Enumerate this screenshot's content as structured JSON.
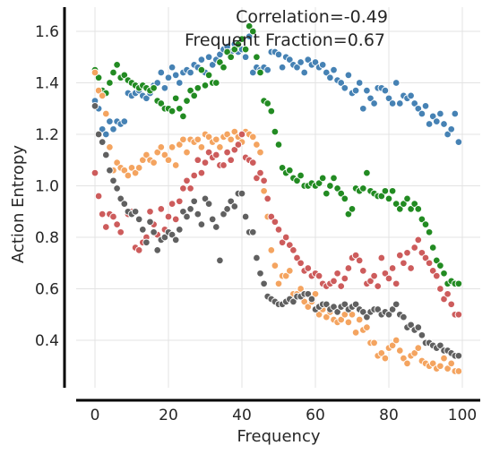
{
  "chart_data": {
    "type": "scatter",
    "title": "",
    "xlabel": "Frequency",
    "ylabel": "Action Entropy",
    "xlim": [
      -5,
      102
    ],
    "ylim": [
      0.2,
      1.68
    ],
    "xticks": [
      0,
      20,
      40,
      60,
      80,
      100
    ],
    "yticks": [
      0.4,
      0.6,
      0.8,
      1.0,
      1.2,
      1.4,
      1.6
    ],
    "ytick_labels": [
      "0.4",
      "0.6",
      "0.8",
      "1.0",
      "1.2",
      "1.4",
      "1.6"
    ],
    "grid": true,
    "legend": "none",
    "annotations": [
      "Correlation=-0.49",
      "Frequent Fraction=0.67"
    ],
    "series": [
      {
        "color": "#4682b4",
        "x": [
          0,
          1,
          2,
          3,
          4,
          5,
          6,
          7,
          8,
          9,
          10,
          11,
          12,
          13,
          14,
          15,
          16,
          17,
          18,
          19,
          20,
          21,
          22,
          23,
          24,
          25,
          26,
          27,
          28,
          29,
          30,
          31,
          32,
          33,
          34,
          35,
          36,
          37,
          38,
          39,
          40,
          41,
          42,
          43,
          44,
          45,
          46,
          47,
          48,
          49,
          50,
          51,
          52,
          53,
          54,
          55,
          56,
          57,
          58,
          59,
          60,
          61,
          62,
          63,
          64,
          65,
          66,
          67,
          68,
          69,
          70,
          71,
          72,
          73,
          74,
          75,
          76,
          77,
          78,
          79,
          80,
          81,
          82,
          83,
          84,
          85,
          86,
          87,
          88,
          89,
          90,
          91,
          92,
          93,
          94,
          95,
          96,
          97,
          98,
          99
        ],
        "y": [
          1.33,
          1.3,
          1.22,
          1.2,
          1.25,
          1.22,
          1.25,
          1.24,
          1.25,
          1.36,
          1.35,
          1.36,
          1.37,
          1.35,
          1.34,
          1.36,
          1.39,
          1.4,
          1.44,
          1.38,
          1.42,
          1.46,
          1.43,
          1.4,
          1.44,
          1.45,
          1.44,
          1.47,
          1.46,
          1.49,
          1.44,
          1.5,
          1.47,
          1.49,
          1.51,
          1.53,
          1.54,
          1.52,
          1.55,
          1.52,
          1.53,
          1.5,
          1.58,
          1.44,
          1.46,
          1.45,
          1.46,
          1.45,
          1.52,
          1.52,
          1.51,
          1.46,
          1.5,
          1.49,
          1.47,
          1.46,
          1.48,
          1.44,
          1.49,
          1.47,
          1.48,
          1.46,
          1.47,
          1.44,
          1.42,
          1.45,
          1.41,
          1.4,
          1.38,
          1.43,
          1.36,
          1.37,
          1.4,
          1.3,
          1.37,
          1.34,
          1.32,
          1.38,
          1.38,
          1.37,
          1.34,
          1.32,
          1.4,
          1.32,
          1.35,
          1.34,
          1.35,
          1.32,
          1.3,
          1.28,
          1.31,
          1.24,
          1.27,
          1.25,
          1.28,
          1.24,
          1.2,
          1.22,
          1.28,
          1.17
        ]
      },
      {
        "color": "#228b22",
        "x": [
          0,
          1,
          2,
          3,
          4,
          5,
          6,
          7,
          8,
          9,
          10,
          11,
          12,
          13,
          14,
          15,
          16,
          17,
          18,
          19,
          20,
          21,
          22,
          23,
          24,
          25,
          26,
          27,
          28,
          29,
          30,
          31,
          32,
          33,
          34,
          35,
          36,
          37,
          38,
          39,
          40,
          41,
          42,
          43,
          44,
          45,
          46,
          47,
          48,
          49,
          50,
          51,
          52,
          53,
          54,
          55,
          56,
          57,
          58,
          59,
          60,
          61,
          62,
          63,
          64,
          65,
          66,
          67,
          68,
          69,
          70,
          71,
          72,
          73,
          74,
          75,
          76,
          77,
          78,
          79,
          80,
          81,
          82,
          83,
          84,
          85,
          86,
          87,
          88,
          89,
          90,
          91,
          92,
          93,
          94,
          95,
          96,
          97,
          98,
          99
        ],
        "y": [
          1.45,
          1.42,
          1.37,
          1.36,
          1.4,
          1.44,
          1.47,
          1.42,
          1.43,
          1.41,
          1.4,
          1.39,
          1.38,
          1.39,
          1.38,
          1.37,
          1.38,
          1.33,
          1.32,
          1.3,
          1.3,
          1.29,
          1.34,
          1.3,
          1.27,
          1.33,
          1.37,
          1.35,
          1.38,
          1.45,
          1.39,
          1.43,
          1.4,
          1.4,
          1.48,
          1.46,
          1.52,
          1.5,
          1.53,
          1.55,
          1.57,
          1.53,
          1.62,
          1.6,
          1.5,
          1.44,
          1.33,
          1.32,
          1.29,
          1.21,
          1.16,
          1.07,
          1.05,
          1.06,
          1.03,
          1.02,
          1.04,
          1.0,
          1.0,
          1.01,
          1.0,
          1.01,
          1.03,
          0.97,
          1.0,
          1.03,
          0.99,
          0.97,
          0.95,
          0.89,
          0.91,
          0.99,
          0.98,
          0.99,
          1.05,
          0.98,
          0.97,
          0.96,
          0.96,
          0.98,
          0.95,
          0.98,
          0.93,
          0.91,
          0.93,
          0.95,
          0.91,
          0.93,
          0.91,
          0.87,
          0.85,
          0.82,
          0.76,
          0.71,
          0.69,
          0.66,
          0.62,
          0.63,
          0.62,
          0.62
        ]
      },
      {
        "color": "#f4a460",
        "x": [
          0,
          1,
          2,
          3,
          4,
          5,
          6,
          7,
          8,
          9,
          10,
          11,
          12,
          13,
          14,
          15,
          16,
          17,
          18,
          19,
          20,
          21,
          22,
          23,
          24,
          25,
          26,
          27,
          28,
          29,
          30,
          31,
          32,
          33,
          34,
          35,
          36,
          37,
          38,
          39,
          40,
          41,
          42,
          43,
          44,
          45,
          46,
          47,
          48,
          49,
          50,
          51,
          52,
          53,
          54,
          55,
          56,
          57,
          58,
          59,
          60,
          61,
          62,
          63,
          64,
          65,
          66,
          67,
          68,
          69,
          70,
          71,
          72,
          73,
          74,
          75,
          76,
          77,
          78,
          79,
          80,
          81,
          82,
          83,
          84,
          85,
          86,
          87,
          88,
          89,
          90,
          91,
          92,
          93,
          94,
          95,
          96,
          97,
          98,
          99
        ],
        "y": [
          1.44,
          1.37,
          1.35,
          1.28,
          1.15,
          1.06,
          1.09,
          1.07,
          1.06,
          1.04,
          1.07,
          1.05,
          1.07,
          1.1,
          1.12,
          1.1,
          1.09,
          1.13,
          1.15,
          1.12,
          1.1,
          1.15,
          1.08,
          1.16,
          1.18,
          1.13,
          1.18,
          1.17,
          1.18,
          1.15,
          1.2,
          1.19,
          1.17,
          1.18,
          1.15,
          1.19,
          1.2,
          1.18,
          1.21,
          1.19,
          1.17,
          1.21,
          1.2,
          1.19,
          1.16,
          1.13,
          0.98,
          0.88,
          0.75,
          0.69,
          0.62,
          0.65,
          0.65,
          0.67,
          0.58,
          0.58,
          0.6,
          0.55,
          0.53,
          0.55,
          0.58,
          0.5,
          0.52,
          0.49,
          0.51,
          0.48,
          0.47,
          0.48,
          0.5,
          0.47,
          0.5,
          0.43,
          0.48,
          0.44,
          0.45,
          0.39,
          0.39,
          0.34,
          0.35,
          0.33,
          0.37,
          0.38,
          0.4,
          0.36,
          0.33,
          0.31,
          0.34,
          0.35,
          0.37,
          0.32,
          0.31,
          0.3,
          0.31,
          0.29,
          0.3,
          0.33,
          0.29,
          0.31,
          0.28,
          0.28
        ]
      },
      {
        "color": "#cd5c5c",
        "x": [
          0,
          1,
          2,
          3,
          4,
          5,
          6,
          7,
          8,
          9,
          10,
          11,
          12,
          13,
          14,
          15,
          16,
          17,
          18,
          19,
          20,
          21,
          22,
          23,
          24,
          25,
          26,
          27,
          28,
          29,
          30,
          31,
          32,
          33,
          34,
          35,
          36,
          37,
          38,
          39,
          40,
          41,
          42,
          43,
          44,
          45,
          46,
          47,
          48,
          49,
          50,
          51,
          52,
          53,
          54,
          55,
          56,
          57,
          58,
          59,
          60,
          61,
          62,
          63,
          64,
          65,
          66,
          67,
          68,
          69,
          70,
          71,
          72,
          73,
          74,
          75,
          76,
          77,
          78,
          79,
          80,
          81,
          82,
          83,
          84,
          85,
          86,
          87,
          88,
          89,
          90,
          91,
          92,
          93,
          94,
          95,
          96,
          97,
          98,
          99
        ],
        "y": [
          1.05,
          0.96,
          0.89,
          0.84,
          0.89,
          0.88,
          0.85,
          0.82,
          0.93,
          0.89,
          0.9,
          0.76,
          0.75,
          0.78,
          0.8,
          0.9,
          0.85,
          0.81,
          0.91,
          0.83,
          0.88,
          0.93,
          0.87,
          0.94,
          0.99,
          1.02,
          0.99,
          1.04,
          1.1,
          1.05,
          1.09,
          1.13,
          1.11,
          1.12,
          1.08,
          1.08,
          1.13,
          1.1,
          1.14,
          1.16,
          1.2,
          1.11,
          1.1,
          1.09,
          1.03,
          1.05,
          1.02,
          0.95,
          0.88,
          0.86,
          0.83,
          0.78,
          0.8,
          0.77,
          0.75,
          0.72,
          0.7,
          0.67,
          0.68,
          0.65,
          0.66,
          0.65,
          0.62,
          0.61,
          0.62,
          0.63,
          0.66,
          0.61,
          0.64,
          0.68,
          0.72,
          0.73,
          0.71,
          0.67,
          0.62,
          0.63,
          0.65,
          0.61,
          0.72,
          0.66,
          0.64,
          0.68,
          0.62,
          0.73,
          0.7,
          0.74,
          0.68,
          0.76,
          0.79,
          0.74,
          0.72,
          0.7,
          0.67,
          0.65,
          0.6,
          0.56,
          0.58,
          0.54,
          0.5,
          0.5
        ]
      },
      {
        "color": "#606060",
        "x": [
          0,
          1,
          2,
          3,
          4,
          5,
          6,
          7,
          8,
          9,
          10,
          11,
          12,
          13,
          14,
          15,
          16,
          17,
          18,
          19,
          20,
          21,
          22,
          23,
          24,
          25,
          26,
          27,
          28,
          29,
          30,
          31,
          32,
          33,
          34,
          35,
          36,
          37,
          38,
          39,
          40,
          41,
          42,
          43,
          44,
          45,
          46,
          47,
          48,
          49,
          50,
          51,
          52,
          53,
          54,
          55,
          56,
          57,
          58,
          59,
          60,
          61,
          62,
          63,
          64,
          65,
          66,
          67,
          68,
          69,
          70,
          71,
          72,
          73,
          74,
          75,
          76,
          77,
          78,
          79,
          80,
          81,
          82,
          83,
          84,
          85,
          86,
          87,
          88,
          89,
          90,
          91,
          92,
          93,
          94,
          95,
          96,
          97,
          98,
          99
        ],
        "y": [
          1.31,
          1.2,
          1.17,
          1.12,
          1.06,
          1.02,
          0.99,
          0.95,
          0.93,
          0.9,
          0.89,
          0.9,
          0.87,
          0.83,
          0.78,
          0.86,
          0.82,
          0.75,
          0.79,
          0.8,
          0.82,
          0.81,
          0.79,
          0.83,
          0.9,
          0.88,
          0.91,
          0.94,
          0.89,
          0.85,
          0.95,
          0.93,
          0.87,
          0.84,
          0.71,
          0.89,
          0.91,
          0.94,
          0.92,
          0.97,
          0.97,
          0.88,
          0.82,
          0.82,
          0.72,
          0.66,
          0.62,
          0.57,
          0.56,
          0.55,
          0.54,
          0.54,
          0.55,
          0.56,
          0.55,
          0.57,
          0.57,
          0.58,
          0.58,
          0.56,
          0.52,
          0.53,
          0.54,
          0.54,
          0.52,
          0.53,
          0.51,
          0.53,
          0.54,
          0.52,
          0.53,
          0.54,
          0.52,
          0.51,
          0.49,
          0.51,
          0.52,
          0.52,
          0.5,
          0.51,
          0.5,
          0.52,
          0.54,
          0.5,
          0.49,
          0.45,
          0.46,
          0.44,
          0.45,
          0.42,
          0.39,
          0.39,
          0.38,
          0.37,
          0.38,
          0.36,
          0.36,
          0.35,
          0.34,
          0.34
        ]
      }
    ]
  }
}
